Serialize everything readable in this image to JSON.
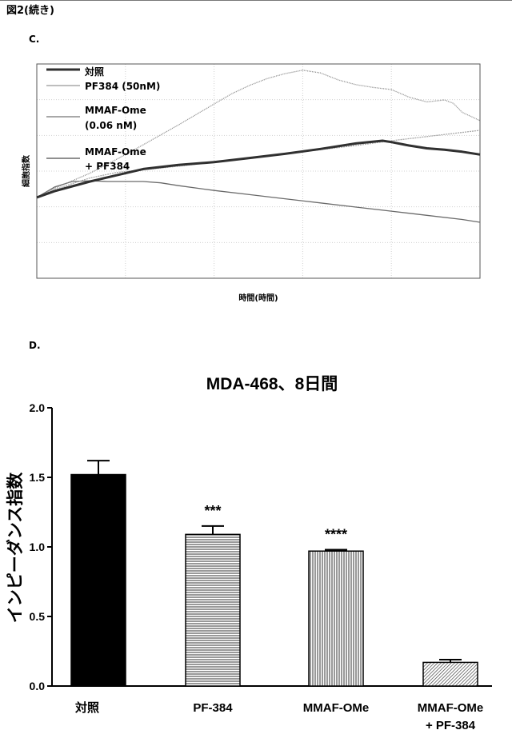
{
  "figure_header": "図2(続き)",
  "panel_c_label": "C.",
  "panel_d_label": "D.",
  "chart_data": [
    {
      "type": "line",
      "panel": "C.",
      "xlabel": "時間(時間)",
      "ylabel": "細胞指数",
      "xlim": [
        0,
        250
      ],
      "ylim": [
        0,
        3.1
      ],
      "grid": true,
      "legend_placement": "top-left",
      "series": [
        {
          "name": "対照",
          "color": "#303030",
          "x": [
            0,
            10,
            20,
            30,
            45,
            60,
            80,
            100,
            120,
            140,
            160,
            180,
            195,
            200,
            210,
            220,
            230,
            240,
            250
          ],
          "y": [
            1.17,
            1.26,
            1.33,
            1.4,
            1.49,
            1.58,
            1.64,
            1.68,
            1.74,
            1.8,
            1.87,
            1.95,
            1.99,
            1.97,
            1.92,
            1.88,
            1.86,
            1.83,
            1.79
          ]
        },
        {
          "name": "PF384 (50nM)",
          "color": "#a8a8a8",
          "x": [
            0,
            10,
            20,
            30,
            45,
            60,
            80,
            100,
            120,
            140,
            160,
            180,
            200,
            220,
            240,
            250
          ],
          "y": [
            1.17,
            1.28,
            1.37,
            1.45,
            1.53,
            1.57,
            1.62,
            1.68,
            1.74,
            1.8,
            1.86,
            1.92,
            1.99,
            2.05,
            2.11,
            2.14
          ]
        },
        {
          "name": "MMAF-Ome (0.06 nM)",
          "color": "#8c8c8c",
          "x": [
            0,
            10,
            20,
            30,
            45,
            60,
            80,
            100,
            110,
            120,
            130,
            140,
            150,
            160,
            170,
            180,
            190,
            200,
            210,
            220,
            230,
            235,
            240,
            250
          ],
          "y": [
            1.17,
            1.3,
            1.41,
            1.52,
            1.72,
            1.93,
            2.22,
            2.52,
            2.67,
            2.79,
            2.89,
            2.96,
            3.01,
            2.97,
            2.87,
            2.8,
            2.76,
            2.73,
            2.62,
            2.55,
            2.58,
            2.53,
            2.4,
            2.28
          ]
        },
        {
          "name": "MMAF-Ome + PF384",
          "color": "#6a6a6a",
          "x": [
            0,
            10,
            20,
            30,
            40,
            50,
            60,
            70,
            80,
            100,
            120,
            140,
            160,
            180,
            200,
            220,
            240,
            250
          ],
          "y": [
            1.17,
            1.32,
            1.4,
            1.41,
            1.4,
            1.4,
            1.4,
            1.38,
            1.34,
            1.27,
            1.21,
            1.15,
            1.09,
            1.03,
            0.97,
            0.91,
            0.85,
            0.81
          ]
        }
      ]
    },
    {
      "type": "bar",
      "panel": "D.",
      "title": "MDA-468、8日間",
      "ylabel": "インピーダンス指数",
      "ylim": [
        0,
        2.0
      ],
      "yticks": [
        "0.0",
        "0.5",
        "1.0",
        "1.5",
        "2.0"
      ],
      "categories": [
        "対照",
        "PF-384",
        "MMAF-OMe",
        "MMAF-OMe\n+ PF-384"
      ],
      "category_lines": [
        [
          "対照"
        ],
        [
          "PF-384"
        ],
        [
          "MMAF-OMe"
        ],
        [
          "MMAF-OMe",
          "+ PF-384"
        ]
      ],
      "values": [
        1.52,
        1.09,
        0.97,
        0.17
      ],
      "errors": [
        0.1,
        0.06,
        0.01,
        0.02
      ],
      "significance": [
        "",
        "***",
        "****",
        ""
      ],
      "fills": [
        "solid",
        "horizontal-lines",
        "vertical-lines",
        "diagonal-lines"
      ]
    }
  ]
}
